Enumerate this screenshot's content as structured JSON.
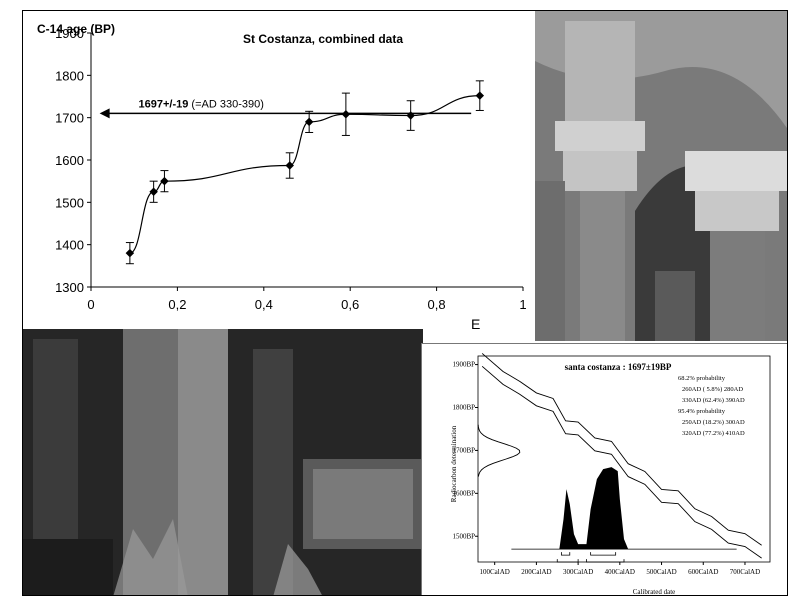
{
  "chart_data": [
    {
      "type": "line",
      "title": "St Costanza, combined data",
      "ylabel": "C-14 age (BP)",
      "xlabel": "",
      "xlim": [
        0,
        1
      ],
      "ylim": [
        1300,
        1900
      ],
      "x_ticks": [
        0,
        0.2,
        0.4,
        0.6,
        0.8,
        1
      ],
      "x_tick_labels": [
        "0",
        "0,2",
        "0,4",
        "0,6",
        "0,8",
        "1"
      ],
      "y_ticks": [
        1300,
        1400,
        1500,
        1600,
        1700,
        1800,
        1900
      ],
      "grid": false,
      "series": [
        {
          "x": [
            0.09,
            0.145,
            0.17,
            0.46,
            0.505,
            0.59,
            0.74,
            0.9
          ],
          "y": [
            1380,
            1525,
            1550,
            1587,
            1690,
            1708,
            1705,
            1752
          ],
          "err": [
            25,
            25,
            25,
            30,
            25,
            50,
            35,
            35
          ]
        }
      ],
      "reference_line": {
        "y": 1710,
        "x_start": 0.88,
        "x_end": 0.02
      },
      "annotation_bold": "1697+/-19",
      "annotation_rest": " (=AD 330-390)",
      "panel_letter": "E"
    },
    {
      "type": "area",
      "title": "santa costanza : 1697±19BP",
      "ylabel": "Radiocarbon determination",
      "xlabel": "Calibrated date",
      "y_tick_labels": [
        "1900BP",
        "1800BP",
        "1700BP",
        "1600BP",
        "1500BP"
      ],
      "y_ticks": [
        1900,
        1800,
        1700,
        1600,
        1500
      ],
      "x_tick_labels": [
        "100CalAD",
        "200CalAD",
        "300CalAD",
        "400CalAD",
        "500CalAD",
        "600CalAD",
        "700CalAD"
      ],
      "x_ticks": [
        100,
        200,
        300,
        400,
        500,
        600,
        700
      ],
      "xlim": [
        60,
        760
      ],
      "ylim": [
        1440,
        1920
      ],
      "probability_text": [
        "68.2% probability",
        "260AD ( 5.8%) 280AD",
        "330AD (62.4%) 390AD",
        "95.4% probability",
        "250AD (18.2%) 300AD",
        "320AD (77.2%) 410AD"
      ]
    }
  ],
  "photos": {
    "arcade": "arcade-photo",
    "interior": "interior-photo"
  }
}
